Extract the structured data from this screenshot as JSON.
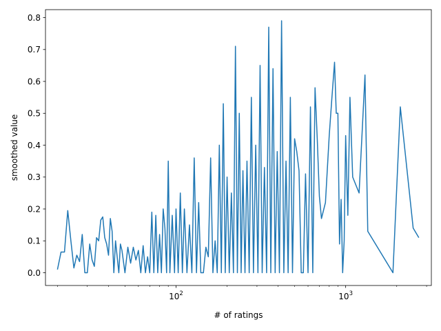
{
  "chart_data": {
    "type": "line",
    "xlabel": "# of ratings",
    "ylabel": "smoothed value",
    "xscale": "log",
    "xlim": [
      17,
      3200
    ],
    "ylim": [
      -0.04,
      0.825
    ],
    "grid": false,
    "x_ticks": [
      {
        "value": 100,
        "base": "10",
        "exp": "2"
      },
      {
        "value": 1000,
        "base": "10",
        "exp": "3"
      }
    ],
    "y_ticks": [
      {
        "value": 0.0,
        "label": "0.0"
      },
      {
        "value": 0.1,
        "label": "0.1"
      },
      {
        "value": 0.2,
        "label": "0.2"
      },
      {
        "value": 0.3,
        "label": "0.3"
      },
      {
        "value": 0.4,
        "label": "0.4"
      },
      {
        "value": 0.5,
        "label": "0.5"
      },
      {
        "value": 0.6,
        "label": "0.6"
      },
      {
        "value": 0.7,
        "label": "0.7"
      },
      {
        "value": 0.8,
        "label": "0.8"
      }
    ],
    "series": [
      {
        "color": "#1f77b4",
        "x": [
          20,
          21,
          22,
          23,
          24,
          25,
          26,
          27,
          28,
          29,
          30,
          31,
          32,
          33,
          34,
          35,
          36,
          37,
          38,
          39,
          40,
          41,
          42,
          43,
          44,
          46,
          47,
          48,
          50,
          52,
          54,
          56,
          58,
          60,
          62,
          64,
          66,
          68,
          70,
          72,
          74,
          76,
          78,
          80,
          82,
          84,
          86,
          88,
          90,
          92,
          95,
          98,
          100,
          103,
          106,
          109,
          112,
          116,
          120,
          124,
          128,
          132,
          136,
          140,
          145,
          150,
          155,
          160,
          165,
          170,
          175,
          180,
          185,
          190,
          195,
          200,
          206,
          212,
          218,
          224,
          230,
          236,
          242,
          248,
          255,
          262,
          270,
          278,
          286,
          295,
          304,
          313,
          322,
          332,
          342,
          352,
          362,
          373,
          384,
          395,
          407,
          419,
          432,
          445,
          458,
          472,
          486,
          500,
          515,
          531,
          547,
          563,
          580,
          600,
          620,
          640,
          660,
          680,
          700,
          720,
          760,
          800,
          830,
          860,
          880,
          900,
          920,
          940,
          960,
          980,
          1000,
          1030,
          1060,
          1100,
          1200,
          1300,
          1350,
          1900,
          2100,
          2500,
          2700
        ],
        "values": [
          0.01,
          0.065,
          0.065,
          0.195,
          0.1,
          0.015,
          0.055,
          0.035,
          0.12,
          0.0,
          0.0,
          0.09,
          0.04,
          0.02,
          0.11,
          0.1,
          0.165,
          0.175,
          0.11,
          0.09,
          0.055,
          0.17,
          0.13,
          0.0,
          0.1,
          0.0,
          0.09,
          0.07,
          0.0,
          0.08,
          0.03,
          0.08,
          0.04,
          0.07,
          0.0,
          0.085,
          0.0,
          0.05,
          0.0,
          0.19,
          0.0,
          0.18,
          0.0,
          0.12,
          0.0,
          0.2,
          0.14,
          0.0,
          0.35,
          0.0,
          0.18,
          0.0,
          0.2,
          0.0,
          0.25,
          0.0,
          0.2,
          0.0,
          0.15,
          0.0,
          0.36,
          0.0,
          0.22,
          0.0,
          0.0,
          0.08,
          0.05,
          0.36,
          0.0,
          0.1,
          0.0,
          0.4,
          0.0,
          0.53,
          0.0,
          0.3,
          0.0,
          0.25,
          0.0,
          0.71,
          0.0,
          0.5,
          0.0,
          0.32,
          0.0,
          0.35,
          0.0,
          0.55,
          0.0,
          0.4,
          0.0,
          0.65,
          0.0,
          0.33,
          0.0,
          0.77,
          0.0,
          0.64,
          0.0,
          0.38,
          0.0,
          0.79,
          0.0,
          0.35,
          0.0,
          0.55,
          0.0,
          0.42,
          0.38,
          0.32,
          0.0,
          0.0,
          0.31,
          0.0,
          0.52,
          0.0,
          0.58,
          0.42,
          0.24,
          0.17,
          0.22,
          0.43,
          0.55,
          0.66,
          0.5,
          0.5,
          0.09,
          0.23,
          0.0,
          0.1,
          0.43,
          0.18,
          0.55,
          0.3,
          0.25,
          0.62,
          0.13,
          0.0,
          0.52,
          0.14,
          0.11
        ]
      }
    ]
  }
}
